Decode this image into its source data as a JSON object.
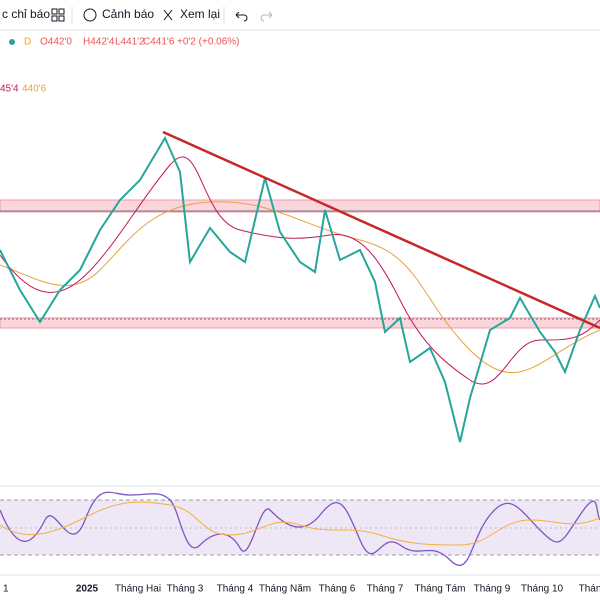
{
  "toolbar": {
    "items": [
      "c chỉ báo",
      "Cảnh báo",
      "Xem lại"
    ]
  },
  "legend": {
    "interval": "D",
    "open": "O442'0",
    "high": "H442'4",
    "low": "L441'2",
    "close": "C441'6",
    "change": "+0'2 (+0.06%)"
  },
  "indicators": {
    "values": [
      "45'4",
      "440'6"
    ]
  },
  "x_axis": {
    "labels": [
      "1",
      "2025",
      "Tháng Hai",
      "Tháng 3",
      "Tháng 4",
      "Tháng Năm",
      "Tháng 6",
      "Tháng 7",
      "Tháng Tám",
      "Tháng 9",
      "Tháng 10",
      "Thán"
    ]
  }
}
